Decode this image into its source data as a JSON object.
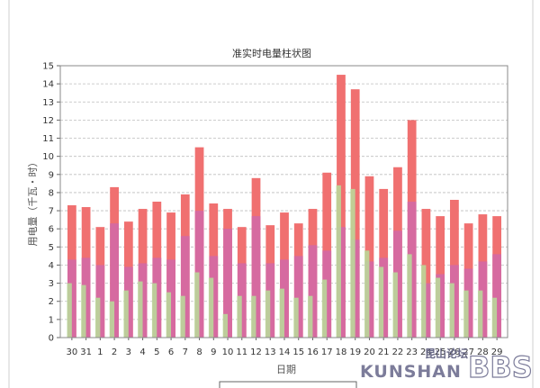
{
  "chart_data": {
    "type": "bar",
    "title": "准实时电量柱状图",
    "xlabel": "日期",
    "ylabel": "用电量（千瓦・时）",
    "ylim": [
      0,
      15
    ],
    "yticks": [
      0,
      1,
      2,
      3,
      4,
      5,
      6,
      7,
      8,
      9,
      10,
      11,
      12,
      13,
      14,
      15
    ],
    "grid": true,
    "categories": [
      "30",
      "31",
      "1",
      "2",
      "3",
      "4",
      "5",
      "6",
      "7",
      "8",
      "9",
      "10",
      "11",
      "12",
      "13",
      "14",
      "15",
      "16",
      "17",
      "18",
      "19",
      "20",
      "21",
      "22",
      "23",
      "24",
      "25",
      "26",
      "27",
      "28",
      "29"
    ],
    "series": [
      {
        "name": "",
        "color": "#f07070",
        "values": [
          7.3,
          7.2,
          6.1,
          8.3,
          6.4,
          7.1,
          7.5,
          6.9,
          7.9,
          10.5,
          7.4,
          7.1,
          6.1,
          8.8,
          6.2,
          6.9,
          6.3,
          7.1,
          9.1,
          14.5,
          13.7,
          8.9,
          8.2,
          9.4,
          12.0,
          7.1,
          6.7,
          7.6,
          6.3,
          6.8,
          6.7
        ]
      },
      {
        "name": "",
        "color": "#d66aa0",
        "values": [
          4.3,
          4.4,
          4.0,
          6.3,
          3.9,
          4.1,
          4.4,
          4.3,
          5.6,
          7.0,
          4.5,
          6.0,
          4.1,
          6.7,
          4.1,
          4.3,
          4.5,
          5.1,
          4.8,
          6.1,
          5.4,
          4.2,
          4.4,
          5.9,
          7.5,
          3.0,
          3.5,
          4.0,
          3.8,
          4.2,
          4.6
        ]
      },
      {
        "name": "",
        "color": "#b9dd9a",
        "values": [
          3.0,
          2.9,
          2.2,
          2.0,
          2.6,
          3.1,
          3.0,
          2.5,
          2.3,
          3.6,
          3.3,
          1.3,
          2.3,
          2.3,
          2.6,
          2.7,
          2.2,
          2.3,
          3.2,
          8.4,
          8.2,
          4.8,
          3.9,
          3.6,
          4.6,
          4.0,
          3.3,
          3.0,
          2.6,
          2.6,
          2.2
        ]
      }
    ]
  },
  "watermark": {
    "line1": "昆山论坛",
    "line2": "KUNSHAN",
    "line3": "BBS"
  }
}
